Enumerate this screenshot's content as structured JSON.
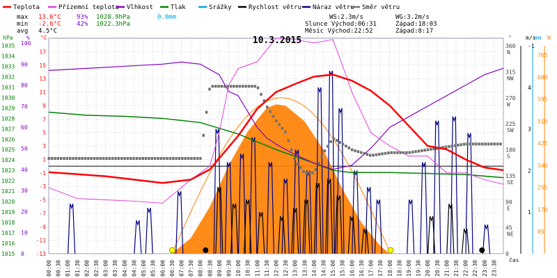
{
  "chart_data": {
    "type": "line",
    "title": "10.3.2015",
    "colors": {
      "temperature": "#ff0000",
      "feels_like": "#e040e0",
      "humidity": "#8000c0",
      "pressure": "#008000",
      "rain": "#00a0e0",
      "wind_speed": "#000000",
      "wind_gust": "#000080",
      "wind_dir": "#707070",
      "sun": "#ff8000",
      "moon": "#ffff00"
    },
    "legend": [
      {
        "key": "temperature",
        "label": "Teplota"
      },
      {
        "key": "feels_like",
        "label": "Přízemní teplota"
      },
      {
        "key": "humidity",
        "label": "Vlhkost"
      },
      {
        "key": "pressure",
        "label": "Tlak"
      },
      {
        "key": "rain",
        "label": "Srážky"
      },
      {
        "key": "wind_speed",
        "label": "Rychlost větru"
      },
      {
        "key": "wind_gust",
        "label": "Náraz větru"
      },
      {
        "key": "wind_dir",
        "label": "Směr větru"
      }
    ],
    "stats": {
      "max": {
        "label": "max",
        "temp": "13.6°C",
        "hum": "93%",
        "press": "1028.9hPa",
        "rain": "0.0mm"
      },
      "min": {
        "label": "min",
        "temp": "-2.6°C",
        "hum": "42%",
        "press": "1022.3hPa"
      },
      "avg": {
        "label": "avg",
        "temp": "4.5°C"
      }
    },
    "info": {
      "ws": "WS:2.3m/s",
      "wg": "WG:3.2m/s",
      "sun": "Slunce Východ:06:31",
      "sunset": "Západ:18:03",
      "moon": "Měsíc  Východ:22:52",
      "moonset": "Západ:8:17"
    },
    "axes": {
      "hpa": {
        "label": "hPa",
        "ticks": [
          "1035",
          "1034",
          "1033",
          "1032",
          "1031",
          "1030",
          "1029",
          "1028",
          "1027",
          "1026",
          "1025",
          "1024",
          "1023",
          "1022",
          "1021",
          "1020",
          "1019",
          "1018",
          "1017",
          "1016",
          "1015"
        ],
        "range": [
          1015,
          1035.7
        ]
      },
      "percent": {
        "label": "%",
        "ticks": [
          "100",
          "90",
          "80",
          "70",
          "60",
          "50",
          "40",
          "30",
          "20",
          "10",
          "0"
        ]
      },
      "celsius": {
        "label": "°C",
        "ticks": [
          "17",
          "15",
          "13",
          "11",
          "9",
          "7",
          "5",
          "3",
          "1",
          "-1",
          "-3",
          "-5",
          "-7",
          "-9",
          "-11",
          "-13"
        ],
        "range": [
          -13,
          19
        ]
      },
      "dir": {
        "label": "°",
        "ticks": [
          {
            "v": "360",
            "c": "N"
          },
          {
            "v": "315",
            "c": "NW"
          },
          {
            "v": "270",
            "c": "W"
          },
          {
            "v": "225",
            "c": "SW"
          },
          {
            "v": "180",
            "c": "S"
          },
          {
            "v": "135",
            "c": "SE"
          },
          {
            "v": "90",
            "c": "E"
          },
          {
            "v": "45",
            "c": "NE"
          },
          {
            "v": "0",
            "c": ""
          }
        ]
      },
      "ms": {
        "label": "m/s",
        "ticks": [
          "-1",
          "",
          "",
          "",
          "",
          "4",
          "3",
          "2",
          "1",
          ""
        ]
      },
      "mm": {
        "label": "mm",
        "ticks": [
          "765",
          "680",
          "595",
          "510",
          "425",
          "340",
          "255",
          "170",
          "85"
        ]
      },
      "w": {
        "label": "W"
      },
      "x_label": "čas",
      "x_ticks": [
        "00:00",
        "00:30",
        "01:00",
        "01:30",
        "02:00",
        "02:30",
        "03:00",
        "03:30",
        "04:00",
        "04:30",
        "05:00",
        "05:30",
        "06:00",
        "06:30",
        "07:00",
        "07:30",
        "08:00",
        "08:30",
        "09:00",
        "09:30",
        "10:00",
        "10:30",
        "11:00",
        "11:30",
        "12:00",
        "12:30",
        "13:00",
        "13:30",
        "14:00",
        "14:30",
        "15:00",
        "15:30",
        "16:00",
        "16:30",
        "17:00",
        "17:30",
        "18:00",
        "18:30",
        "19:00",
        "19:30",
        "20:00",
        "20:30",
        "21:00",
        "21:30",
        "22:00",
        "22:30",
        "23:00",
        "23:30"
      ]
    },
    "series": [
      {
        "key": "temperature",
        "name": "Teplota",
        "unit": "°C",
        "x": [
          0,
          3,
          6,
          7.5,
          8.5,
          10,
          11,
          12,
          13,
          14,
          15,
          16,
          17,
          18,
          19,
          20,
          21,
          22,
          23,
          24
        ],
        "y": [
          -0.9,
          -1.5,
          -2.5,
          -2.0,
          -0.5,
          4.5,
          8.5,
          11,
          12.2,
          13.3,
          13.6,
          12.7,
          11.2,
          9,
          6,
          3,
          2.5,
          1,
          -0.2,
          -0.6
        ]
      },
      {
        "key": "feels_like",
        "name": "Přízemní teplota",
        "unit": "°C",
        "x": [
          0,
          1.5,
          3,
          4.5,
          6,
          7.5,
          8.5,
          9,
          9.5,
          10,
          11,
          12,
          13,
          14,
          15,
          15.5,
          16,
          16.5,
          17,
          18,
          19,
          20,
          21,
          22,
          23,
          24
        ],
        "y": [
          -3.2,
          -4.8,
          -5,
          -5.2,
          -5.5,
          -2,
          0,
          5,
          12,
          14.5,
          15.5,
          19,
          18.8,
          18.3,
          18.8,
          15,
          11,
          8,
          5,
          3,
          1.5,
          1.5,
          -1,
          -1,
          -2,
          -2.7
        ]
      },
      {
        "key": "humidity",
        "name": "Vlhkost",
        "unit": "%",
        "x": [
          0,
          2,
          4,
          6,
          7,
          8,
          9,
          9.5,
          10,
          11,
          11.5,
          12,
          13,
          14,
          15,
          16,
          17,
          18,
          19,
          20,
          21,
          22,
          23,
          24
        ],
        "y": [
          87,
          88,
          89,
          90,
          91,
          90,
          85,
          77,
          75,
          60,
          55,
          52,
          47,
          43,
          40,
          42,
          50,
          60,
          65,
          70,
          75,
          80,
          85,
          88
        ]
      },
      {
        "key": "pressure",
        "name": "Tlak",
        "unit": "hPa",
        "x": [
          0,
          2,
          4,
          6,
          8,
          10,
          12,
          14,
          15,
          16,
          18,
          20,
          22,
          24
        ],
        "y": [
          1028.6,
          1028.3,
          1028.2,
          1028.0,
          1027.6,
          1026.5,
          1025.0,
          1023.7,
          1023.0,
          1022.8,
          1022.8,
          1022.7,
          1022.6,
          1022.3
        ]
      },
      {
        "key": "wind_dir",
        "name": "Směr větru",
        "unit": "°",
        "x": [
          0,
          1.5,
          3,
          4.5,
          6,
          7,
          8,
          8.5,
          9,
          10,
          11,
          11.5,
          12,
          12.5,
          13,
          13.5,
          14,
          14.5,
          15,
          16,
          17,
          18,
          19,
          20,
          21,
          22,
          23,
          24
        ],
        "y": [
          165,
          165,
          165,
          165,
          165,
          165,
          165,
          290,
          290,
          290,
          290,
          255,
          230,
          210,
          160,
          140,
          140,
          175,
          200,
          180,
          170,
          175,
          175,
          180,
          185,
          190,
          190,
          190
        ]
      },
      {
        "key": "sun",
        "name": "Slunce",
        "unit": "W",
        "x": [
          6.5,
          7.5,
          8.5,
          9.5,
          10.5,
          11.5,
          12,
          12.5,
          13.5,
          14.5,
          15.5,
          16.5,
          17.5,
          18
        ],
        "y": [
          0,
          60,
          180,
          340,
          470,
          560,
          575,
          570,
          510,
          400,
          250,
          120,
          30,
          0
        ]
      }
    ],
    "gust_events": [
      {
        "x": 1.2,
        "v": 1.2
      },
      {
        "x": 4.7,
        "v": 0.8
      },
      {
        "x": 5.3,
        "v": 1.1
      },
      {
        "x": 6.9,
        "v": 1.5
      },
      {
        "x": 8.9,
        "v": 3.0
      },
      {
        "x": 9.5,
        "v": 2.2
      },
      {
        "x": 10.2,
        "v": 2.4
      },
      {
        "x": 10.8,
        "v": 2.8
      },
      {
        "x": 11.7,
        "v": 2.2
      },
      {
        "x": 12.5,
        "v": 1.8
      },
      {
        "x": 13.1,
        "v": 2.5
      },
      {
        "x": 13.7,
        "v": 2.0
      },
      {
        "x": 14.3,
        "v": 4.0
      },
      {
        "x": 14.9,
        "v": 4.4
      },
      {
        "x": 15.4,
        "v": 3.5
      },
      {
        "x": 16.2,
        "v": 2.0
      },
      {
        "x": 16.9,
        "v": 1.6
      },
      {
        "x": 17.4,
        "v": 1.3
      },
      {
        "x": 19.1,
        "v": 1.3
      },
      {
        "x": 19.8,
        "v": 2.2
      },
      {
        "x": 20.5,
        "v": 3.2
      },
      {
        "x": 21.4,
        "v": 3.3
      },
      {
        "x": 22.2,
        "v": 2.9
      },
      {
        "x": 23.1,
        "v": 0.7
      }
    ],
    "speed_events": [
      {
        "x": 9.0,
        "v": 1.6
      },
      {
        "x": 9.8,
        "v": 1.2
      },
      {
        "x": 10.5,
        "v": 1.3
      },
      {
        "x": 11.2,
        "v": 1.0
      },
      {
        "x": 12.3,
        "v": 0.9
      },
      {
        "x": 13.0,
        "v": 1.1
      },
      {
        "x": 13.6,
        "v": 1.3
      },
      {
        "x": 14.2,
        "v": 1.7
      },
      {
        "x": 14.8,
        "v": 1.8
      },
      {
        "x": 15.3,
        "v": 1.4
      },
      {
        "x": 16.0,
        "v": 0.9
      },
      {
        "x": 16.7,
        "v": 0.6
      },
      {
        "x": 20.2,
        "v": 0.9
      },
      {
        "x": 21.2,
        "v": 1.2
      },
      {
        "x": 22.0,
        "v": 0.6
      }
    ],
    "markers": [
      {
        "type": "sunrise",
        "x": 6.52
      },
      {
        "type": "sunset",
        "x": 18.05
      },
      {
        "type": "moonrise",
        "x": 22.87
      },
      {
        "type": "moonset",
        "x": 8.28
      }
    ]
  }
}
